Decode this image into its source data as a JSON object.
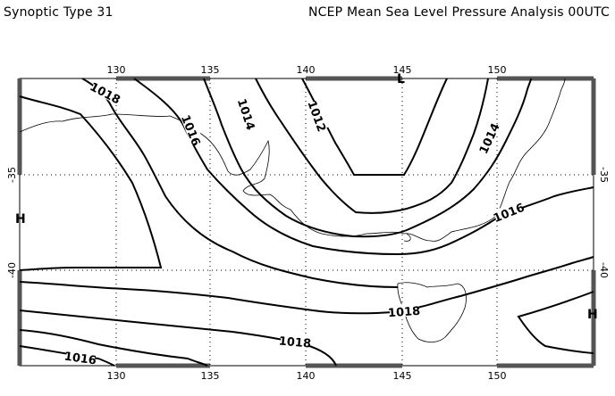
{
  "header": {
    "left_title": "Synoptic Type 31",
    "right_title": "NCEP Mean Sea Level Pressure Analysis 00UTC"
  },
  "map": {
    "lon_ticks": [
      "130",
      "135",
      "140",
      "145",
      "150"
    ],
    "lat_ticks": [
      "-35",
      "-40"
    ],
    "pressure_labels": [
      "1018",
      "1016",
      "1014",
      "1012",
      "1014",
      "1016",
      "1018",
      "1018",
      "1016"
    ],
    "centers": [
      "L",
      "H",
      "H"
    ],
    "line_color": "#000000",
    "background": "#ffffff"
  }
}
